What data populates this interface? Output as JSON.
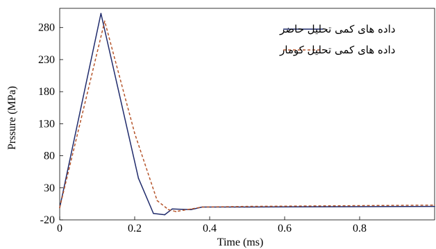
{
  "chart_data": {
    "type": "line",
    "title": "",
    "xlabel": "Time (ms)",
    "ylabel": "Prssure (MPa)",
    "xlim": [
      0,
      1.0
    ],
    "ylim": [
      -20,
      310
    ],
    "xticks": [
      0,
      0.2,
      0.4,
      0.6,
      0.8
    ],
    "xtick_labels": [
      "0",
      "0.2",
      "0.4",
      "0.6",
      "0.8"
    ],
    "yticks": [
      -20,
      30,
      80,
      130,
      180,
      230,
      280
    ],
    "ytick_labels": [
      "-20",
      "30",
      "80",
      "130",
      "180",
      "230",
      "280"
    ],
    "grid": false,
    "legend_position": "top-right",
    "series": [
      {
        "name": "داده های کمی تحلیل حاضر",
        "color": "#1f2a6b",
        "dash": "solid",
        "x": [
          0,
          0.11,
          0.21,
          0.25,
          0.28,
          0.3,
          0.35,
          0.38,
          0.5,
          1.0
        ],
        "y": [
          -1,
          302,
          45,
          -10,
          -12,
          -3,
          -4,
          0,
          0,
          1
        ]
      },
      {
        "name": "داده های کمی تحلیل کومار",
        "color": "#b5542a",
        "dash": "dashed",
        "x": [
          0,
          0.12,
          0.2,
          0.26,
          0.29,
          0.31,
          0.35,
          0.38,
          0.5,
          1.0
        ],
        "y": [
          -1,
          290,
          115,
          10,
          -4,
          -7,
          -3,
          0,
          1,
          3
        ]
      }
    ]
  }
}
